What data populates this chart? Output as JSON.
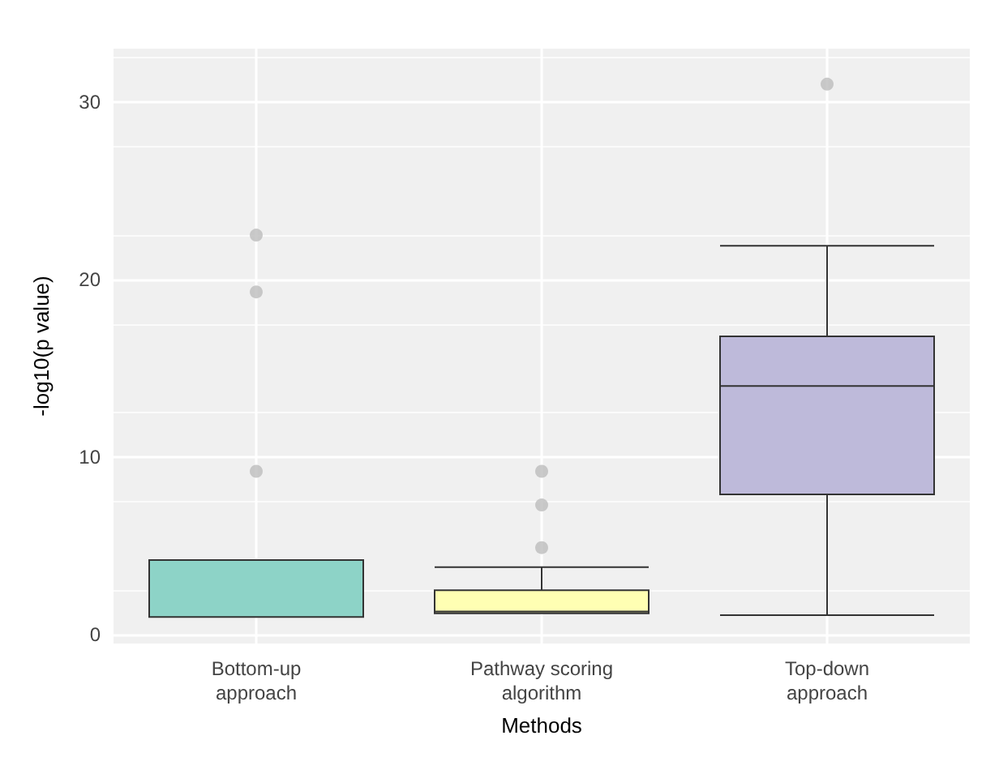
{
  "chart_data": {
    "type": "box",
    "xlabel": "Methods",
    "ylabel": "-log10(p value)",
    "categories": [
      "Bottom-up\napproach",
      "Pathway scoring\nalgorithm",
      "Top-down\napproach"
    ],
    "boxes": [
      {
        "low": 1.0,
        "q1": 1.0,
        "median": 1.0,
        "q3": 4.2,
        "high": 4.2,
        "outliers": [
          22.5,
          19.3,
          9.2
        ]
      },
      {
        "low": 1.2,
        "q1": 1.2,
        "median": 1.3,
        "q3": 2.5,
        "high": 3.8,
        "outliers": [
          9.2,
          7.3,
          4.9
        ]
      },
      {
        "low": 1.1,
        "q1": 7.9,
        "median": 14.0,
        "q3": 16.8,
        "high": 21.9,
        "outliers": [
          31.0
        ]
      }
    ],
    "colors": [
      "#8dd3c7",
      "#ffffb3",
      "#bebada"
    ],
    "ylim": [
      -0.5,
      33
    ],
    "yticks": [
      0,
      10,
      20,
      30
    ],
    "grid": true
  }
}
